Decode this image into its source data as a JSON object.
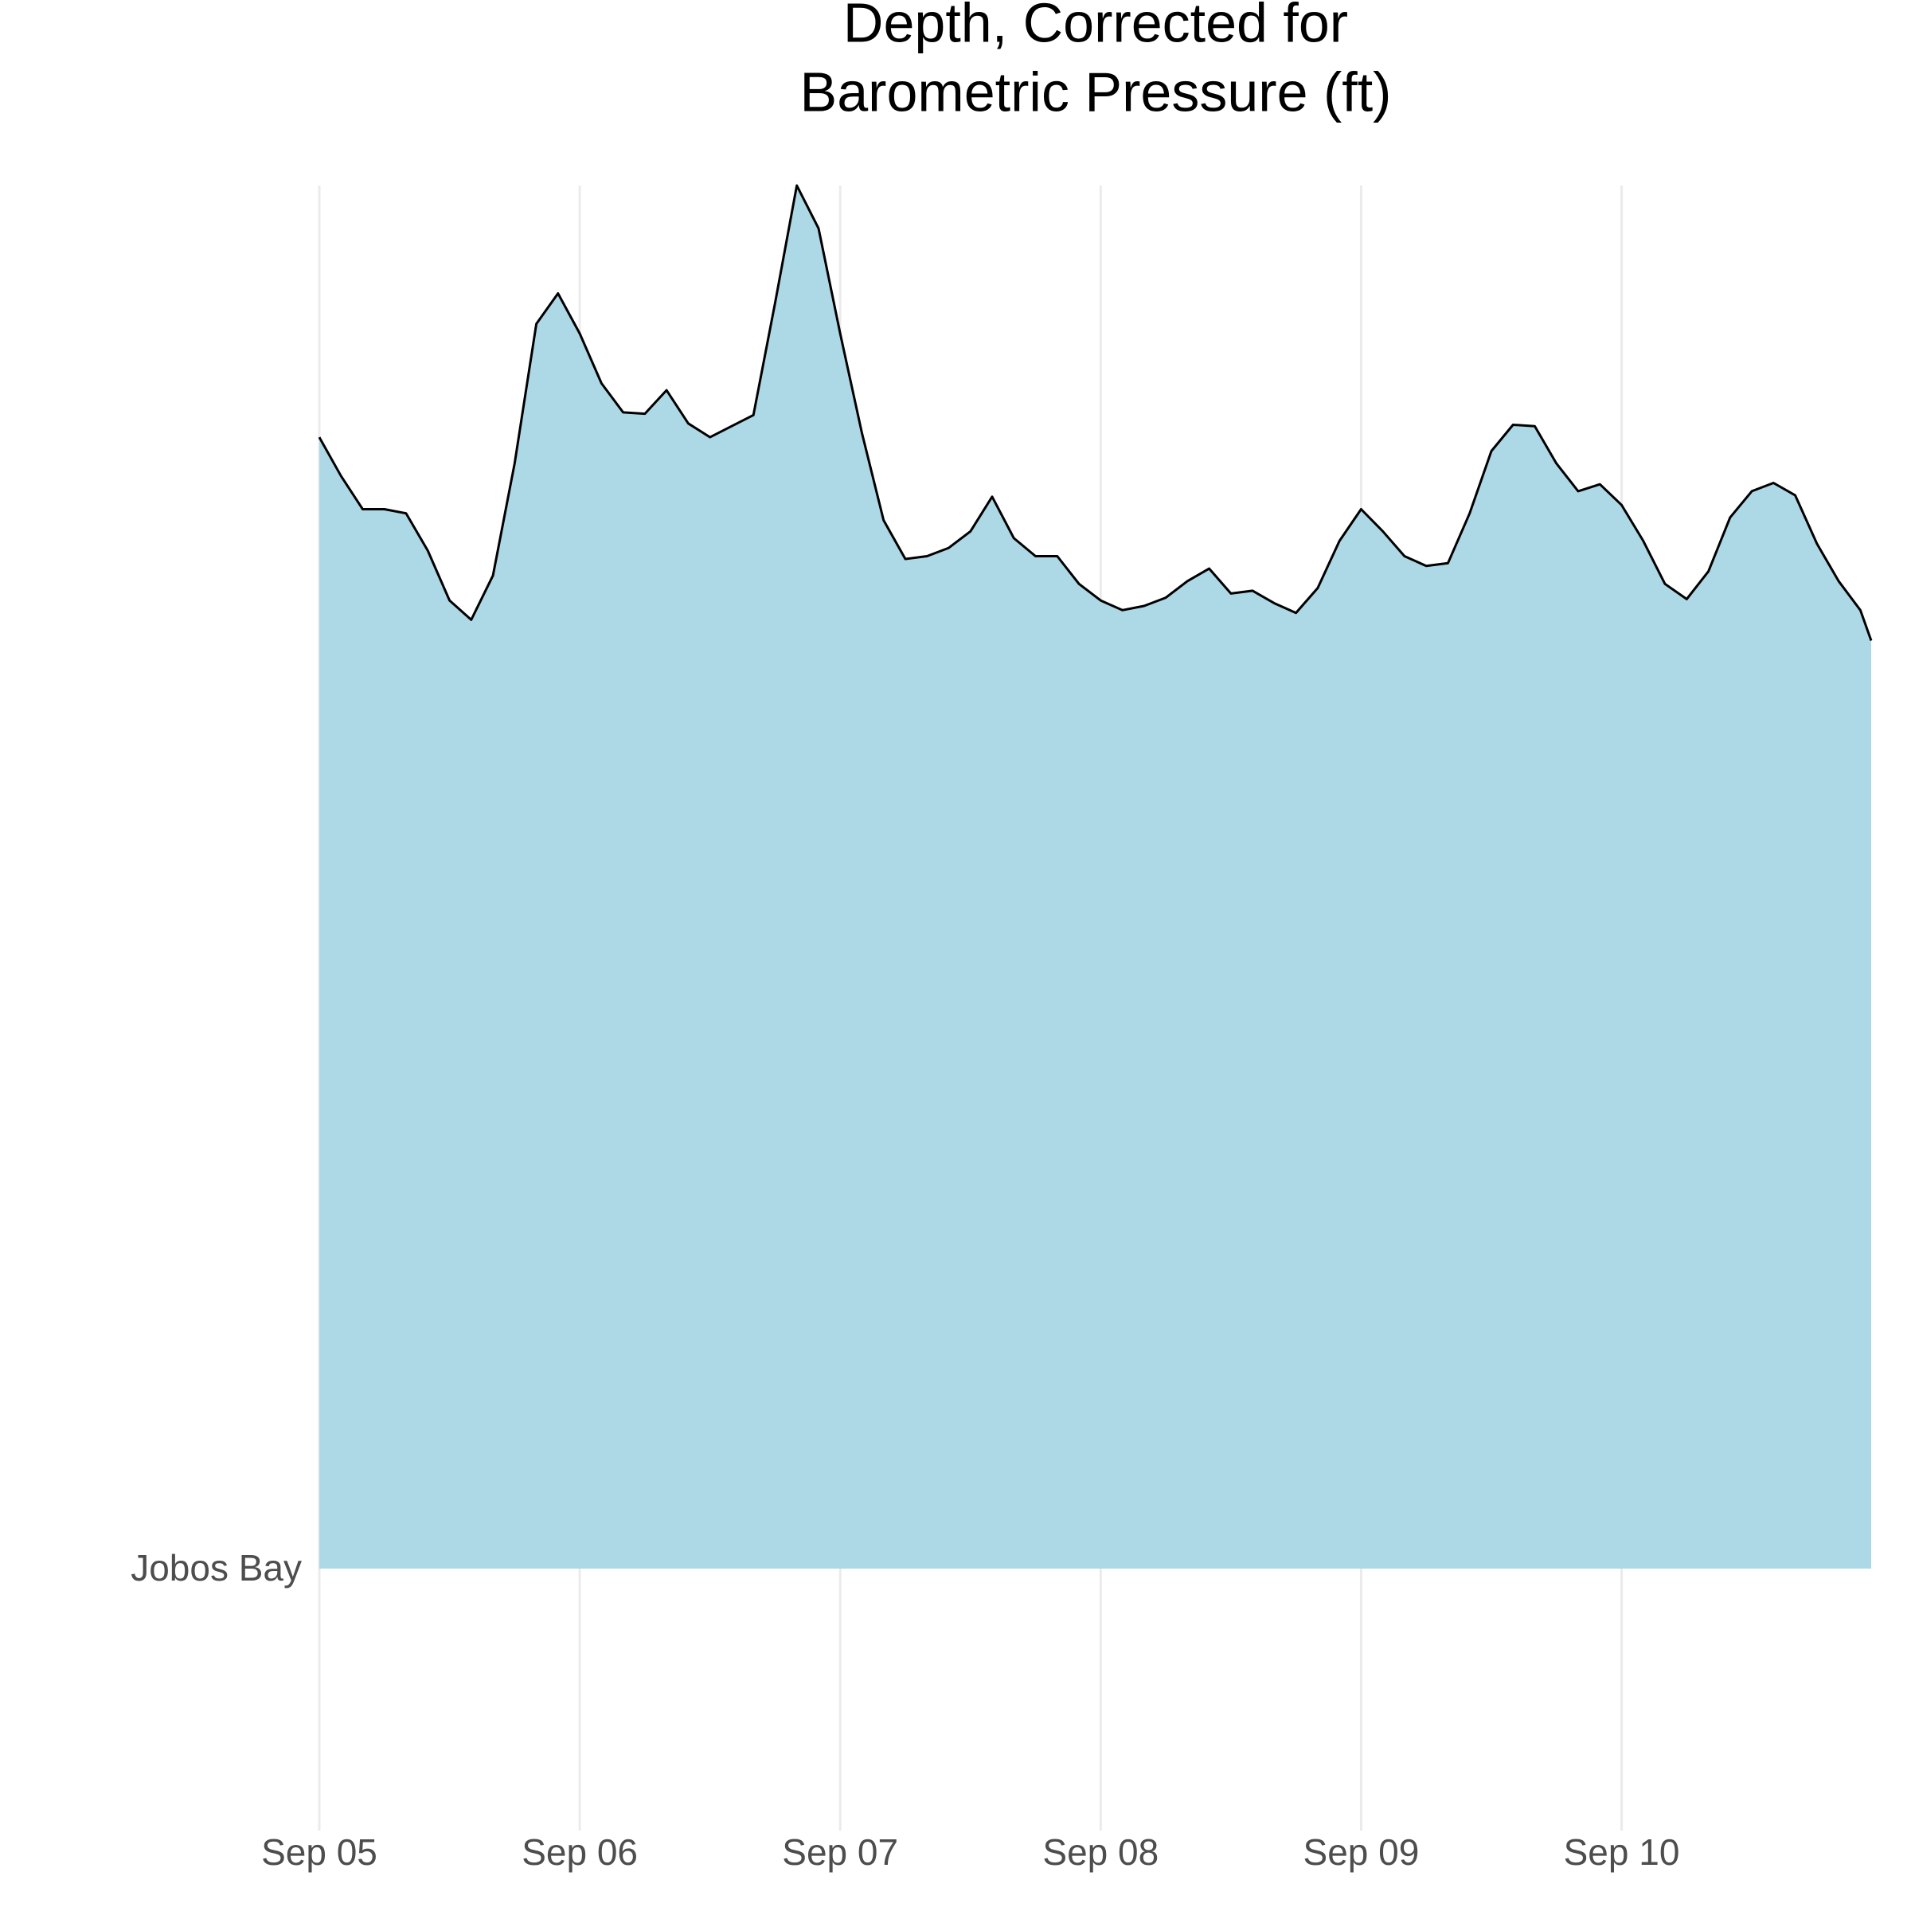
{
  "chart_data": {
    "type": "ridgeline",
    "title": [
      "Depth, Corrected for",
      "Barometric Pressure (ft)"
    ],
    "categories": [
      "Jobos Bay"
    ],
    "x": [
      0,
      2,
      4,
      6,
      8,
      10,
      12,
      14,
      16,
      18,
      20,
      22,
      24,
      26,
      28,
      30,
      32,
      34,
      36,
      38,
      40,
      42,
      44,
      46,
      48,
      50,
      52,
      54,
      56,
      58,
      60,
      62,
      64,
      66,
      68,
      70,
      72,
      74,
      76,
      78,
      80,
      82,
      84,
      86,
      88,
      90,
      92,
      94,
      96,
      98,
      100,
      102,
      104,
      106,
      108,
      110,
      112,
      114,
      116,
      118,
      120,
      122,
      124,
      126,
      128,
      130,
      132,
      134,
      136,
      138,
      140,
      142,
      143
    ],
    "series": [
      {
        "name": "Jobos Bay",
        "color": "#add8e6",
        "line_color": "#000000",
        "values": [
          0.818,
          0.79,
          0.766,
          0.766,
          0.763,
          0.736,
          0.7,
          0.686,
          0.718,
          0.799,
          0.9,
          0.922,
          0.893,
          0.857,
          0.836,
          0.835,
          0.852,
          0.828,
          0.818,
          0.826,
          0.834,
          0.915,
          1.0,
          0.969,
          0.893,
          0.821,
          0.758,
          0.73,
          0.732,
          0.738,
          0.75,
          0.775,
          0.745,
          0.732,
          0.732,
          0.712,
          0.7,
          0.693,
          0.696,
          0.702,
          0.714,
          0.723,
          0.705,
          0.707,
          0.698,
          0.691,
          0.709,
          0.743,
          0.766,
          0.75,
          0.732,
          0.725,
          0.727,
          0.763,
          0.808,
          0.827,
          0.826,
          0.799,
          0.779,
          0.784,
          0.769,
          0.743,
          0.712,
          0.701,
          0.721,
          0.76,
          0.779,
          0.785,
          0.776,
          0.741,
          0.714,
          0.693,
          0.671
        ]
      }
    ],
    "xlim": [
      0,
      143
    ],
    "xticks": [
      {
        "value": 0,
        "label": "Sep 05"
      },
      {
        "value": 24,
        "label": "Sep 06"
      },
      {
        "value": 48,
        "label": "Sep 07"
      },
      {
        "value": 72,
        "label": "Sep 08"
      },
      {
        "value": 96,
        "label": "Sep 09"
      },
      {
        "value": 120,
        "label": "Sep 10"
      }
    ],
    "ylim": [
      0,
      1
    ],
    "grid": true
  }
}
